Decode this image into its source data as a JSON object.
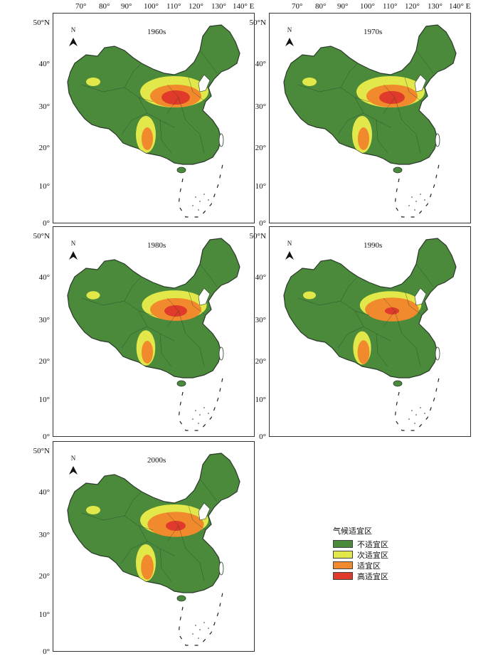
{
  "x_ticks": [
    "70°",
    "80°",
    "90°",
    "100°",
    "110°",
    "120°",
    "130°",
    "140° E"
  ],
  "y_ticks": [
    "50°N",
    "40°",
    "30°",
    "20°",
    "10°",
    "0°"
  ],
  "north_label": "N",
  "panels": [
    {
      "decade": "1960s",
      "high": 1.0,
      "suitable": 1.0,
      "sub": 1.0
    },
    {
      "decade": "1970s",
      "high": 0.9,
      "suitable": 1.0,
      "sub": 1.0
    },
    {
      "decade": "1980s",
      "high": 0.8,
      "suitable": 1.0,
      "sub": 0.95
    },
    {
      "decade": "1990s",
      "high": 0.5,
      "suitable": 1.05,
      "sub": 0.9
    },
    {
      "decade": "2000s",
      "high": 0.7,
      "suitable": 1.1,
      "sub": 1.0
    }
  ],
  "legend": {
    "title": "气候适宜区",
    "items": [
      {
        "label": "不适宜区",
        "color": "#4a8a3a"
      },
      {
        "label": "次适宜区",
        "color": "#e3e84a"
      },
      {
        "label": "适宜区",
        "color": "#f08a2c"
      },
      {
        "label": "高适宜区",
        "color": "#e03a2a"
      }
    ]
  },
  "colors": {
    "land": "#4a8a3a",
    "sub": "#e3e84a",
    "suitable": "#f08a2c",
    "high": "#e03a2a",
    "border": "#2b3a2b"
  }
}
